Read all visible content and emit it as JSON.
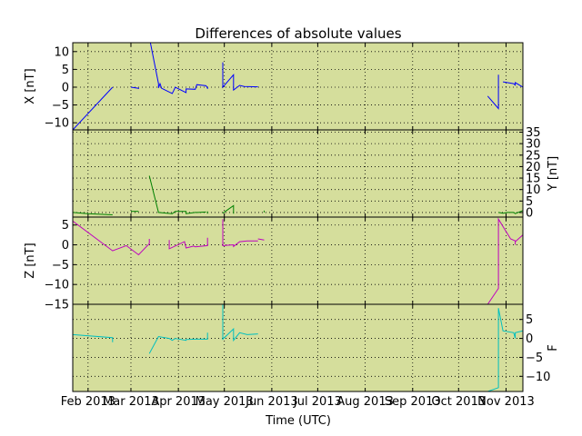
{
  "colors": {
    "background": "#d5de9c",
    "x": "#0000ff",
    "y": "#008000",
    "z": "#bf00bf",
    "f": "#00bfbf",
    "grid": "#000000"
  },
  "chart_data": {
    "type": "line",
    "title": "Differences of absolute values",
    "xlabel": "Time (UTC)",
    "x_range": [
      "2013-01-22",
      "2013-11-12"
    ],
    "x_ticks": [
      "2013-02-01",
      "2013-03-01",
      "2013-04-01",
      "2013-05-01",
      "2013-06-01",
      "2013-07-01",
      "2013-08-01",
      "2013-09-01",
      "2013-10-01",
      "2013-11-01"
    ],
    "x_tick_labels": [
      "Feb 2013",
      "Mar 2013",
      "Apr 2013",
      "May 2013",
      "Jun 2013",
      "Jul 2013",
      "Aug 2013",
      "Sep 2013",
      "Oct 2013",
      "Nov 2013"
    ],
    "grid": true,
    "panels": [
      {
        "key": "x",
        "ylabel": "X [nT]",
        "axis_side": "left",
        "ylim": [
          -12,
          12.5
        ],
        "yticks": [
          10,
          5,
          0,
          -5,
          -10
        ],
        "ytick_labels": [
          "10",
          "5",
          "0",
          "−5",
          "−10"
        ],
        "segments": [
          [
            [
              "2013-01-22",
              -12
            ],
            [
              "2013-02-17",
              0
            ]
          ],
          [
            [
              "2013-03-01",
              0
            ],
            [
              "2013-03-06",
              -0.3
            ],
            [
              "2013-03-06",
              -0.5
            ]
          ],
          [
            [
              "2013-03-13",
              14
            ],
            [
              "2013-03-19",
              1
            ],
            [
              "2013-03-19",
              -0.2
            ],
            [
              "2013-03-20",
              1
            ],
            [
              "2013-03-21",
              -0.3
            ],
            [
              "2013-03-28",
              -1.8
            ],
            [
              "2013-03-30",
              0
            ],
            [
              "2013-04-06",
              -1.5
            ],
            [
              "2013-04-06",
              -0.5
            ],
            [
              "2013-04-12",
              -0.6
            ],
            [
              "2013-04-13",
              0.7
            ],
            [
              "2013-04-19",
              0.4
            ],
            [
              "2013-04-20",
              -0.2
            ]
          ],
          [
            [
              "2013-04-20",
              0
            ],
            [
              "2013-04-20",
              -0.5
            ]
          ],
          [
            [
              "2013-04-30",
              7
            ],
            [
              "2013-04-30",
              0
            ],
            [
              "2013-05-07",
              3.5
            ],
            [
              "2013-05-07",
              -0.8
            ],
            [
              "2013-05-11",
              0.5
            ],
            [
              "2013-05-14",
              0.2
            ],
            [
              "2013-05-23",
              0.1
            ]
          ],
          [
            [
              "2013-10-20",
              -2.5
            ],
            [
              "2013-10-27",
              -6
            ],
            [
              "2013-10-27",
              3.5
            ]
          ],
          [
            [
              "2013-10-30",
              1.5
            ],
            [
              "2013-11-06",
              1
            ],
            [
              "2013-11-07",
              0.6
            ],
            [
              "2013-11-07",
              1.3
            ],
            [
              "2013-11-12",
              0
            ]
          ]
        ]
      },
      {
        "key": "y",
        "ylabel": "Y [nT]",
        "axis_side": "right",
        "ylim": [
          -2,
          36
        ],
        "yticks": [
          35,
          30,
          25,
          20,
          15,
          10,
          5,
          0
        ],
        "ytick_labels": [
          "35",
          "30",
          "25",
          "20",
          "15",
          "10",
          "5",
          "0"
        ],
        "segments": [
          [
            [
              "2013-01-22",
              0
            ],
            [
              "2013-02-01",
              -0.5
            ],
            [
              "2013-02-17",
              -1
            ]
          ],
          [
            [
              "2013-03-01",
              0.5
            ],
            [
              "2013-03-06",
              0.5
            ]
          ],
          [
            [
              "2013-03-13",
              16
            ],
            [
              "2013-03-19",
              0
            ],
            [
              "2013-03-28",
              -0.5
            ],
            [
              "2013-03-30",
              0.5
            ],
            [
              "2013-04-06",
              0.5
            ],
            [
              "2013-04-06",
              -0.5
            ],
            [
              "2013-04-12",
              0
            ],
            [
              "2013-04-14",
              0
            ],
            [
              "2013-04-19",
              0.2
            ]
          ],
          [
            [
              "2013-04-20",
              0.5
            ],
            [
              "2013-04-20",
              -0.5
            ]
          ],
          [
            [
              "2013-04-30",
              -0.3
            ],
            [
              "2013-05-07",
              3
            ],
            [
              "2013-05-07",
              -0.5
            ]
          ],
          [
            [
              "2013-05-27",
              0.8
            ],
            [
              "2013-05-27",
              0
            ]
          ],
          [
            [
              "2013-10-27",
              0
            ],
            [
              "2013-10-30",
              -0.3
            ],
            [
              "2013-11-02",
              0
            ],
            [
              "2013-11-06",
              0
            ],
            [
              "2013-11-07",
              -0.5
            ],
            [
              "2013-11-12",
              0.8
            ]
          ]
        ]
      },
      {
        "key": "z",
        "ylabel": "Z [nT]",
        "axis_side": "left",
        "ylim": [
          -15,
          7
        ],
        "yticks": [
          5,
          0,
          -5,
          -10,
          -15
        ],
        "ytick_labels": [
          "5",
          "0",
          "−5",
          "−10",
          "−15"
        ],
        "segments": [
          [
            [
              "2013-01-22",
              6
            ],
            [
              "2013-02-17",
              -1.5
            ],
            [
              "2013-02-26",
              -0.2
            ],
            [
              "2013-03-06",
              -2.5
            ],
            [
              "2013-03-13",
              0.3
            ],
            [
              "2013-03-13",
              1.5
            ]
          ],
          [
            [
              "2013-03-26",
              1.2
            ],
            [
              "2013-03-26",
              -1
            ],
            [
              "2013-04-05",
              0.8
            ],
            [
              "2013-04-06",
              -0.8
            ],
            [
              "2013-04-11",
              -0.3
            ],
            [
              "2013-04-12",
              -0.5
            ],
            [
              "2013-04-20",
              -0.2
            ],
            [
              "2013-04-20",
              1.8
            ]
          ],
          [
            [
              "2013-04-30",
              6.5
            ],
            [
              "2013-04-30",
              -0.2
            ],
            [
              "2013-05-07",
              0
            ],
            [
              "2013-05-07",
              -0.4
            ],
            [
              "2013-05-11",
              0.8
            ],
            [
              "2013-05-16",
              1
            ],
            [
              "2013-05-23",
              1
            ]
          ],
          [
            [
              "2013-05-23",
              1.5
            ],
            [
              "2013-05-27",
              1.2
            ]
          ],
          [
            [
              "2013-10-20",
              -15
            ],
            [
              "2013-10-27",
              -11
            ],
            [
              "2013-10-27",
              6.5
            ],
            [
              "2013-11-04",
              1.5
            ],
            [
              "2013-11-07",
              1
            ],
            [
              "2013-11-07",
              0
            ],
            [
              "2013-11-07",
              0.8
            ],
            [
              "2013-11-12",
              2.5
            ]
          ]
        ]
      },
      {
        "key": "f",
        "ylabel": "F",
        "axis_side": "right",
        "ylim": [
          -14,
          9
        ],
        "yticks": [
          5,
          0,
          -5,
          -10
        ],
        "ytick_labels": [
          "5",
          "0",
          "−5",
          "−10"
        ],
        "segments": [
          [
            [
              "2013-01-22",
              1
            ],
            [
              "2013-02-17",
              0.2
            ],
            [
              "2013-02-17",
              -1
            ]
          ],
          [
            [
              "2013-03-13",
              -4
            ],
            [
              "2013-03-19",
              0.5
            ],
            [
              "2013-03-26",
              0
            ],
            [
              "2013-03-28",
              -0.5
            ],
            [
              "2013-03-30",
              0
            ],
            [
              "2013-04-06",
              -0.5
            ],
            [
              "2013-04-06",
              -0.3
            ],
            [
              "2013-04-12",
              -0.2
            ],
            [
              "2013-04-20",
              -0.2
            ],
            [
              "2013-04-20",
              1.5
            ]
          ],
          [
            [
              "2013-04-30",
              9
            ],
            [
              "2013-04-30",
              -0.2
            ],
            [
              "2013-05-07",
              2.5
            ],
            [
              "2013-05-07",
              -0.5
            ],
            [
              "2013-05-11",
              1.5
            ],
            [
              "2013-05-16",
              1
            ],
            [
              "2013-05-23",
              1.2
            ]
          ],
          [
            [
              "2013-10-20",
              -14
            ],
            [
              "2013-10-27",
              -13
            ],
            [
              "2013-10-27",
              8
            ],
            [
              "2013-10-30",
              2
            ],
            [
              "2013-11-06",
              1.5
            ],
            [
              "2013-11-07",
              0
            ],
            [
              "2013-11-07",
              1.5
            ],
            [
              "2013-11-12",
              2
            ]
          ]
        ]
      }
    ]
  }
}
